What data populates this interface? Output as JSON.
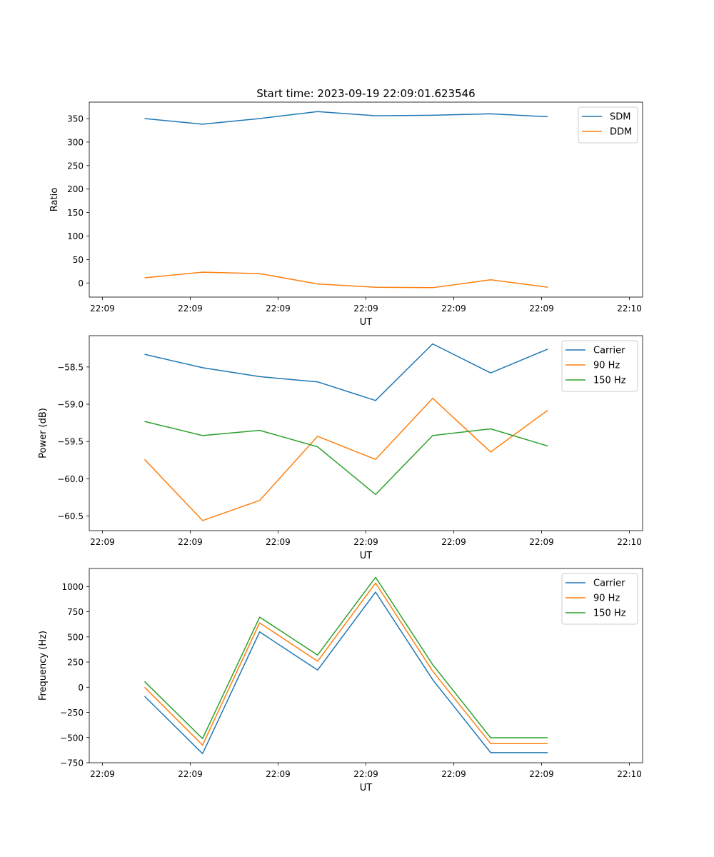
{
  "figure_title": "Start time: 2023-09-19 22:09:01.623546",
  "chart_data": [
    {
      "type": "line",
      "title": "Start time: 2023-09-19 22:09:01.623546",
      "xlabel": "UT",
      "ylabel": "Ratio",
      "x_ticks": [
        0,
        1,
        2,
        3,
        4,
        5,
        6
      ],
      "x_tick_labels": [
        "22:09",
        "22:09",
        "22:09",
        "22:09",
        "22:09",
        "22:09",
        "22:10"
      ],
      "xlim": [
        -0.15,
        6.15
      ],
      "ylim": [
        -30,
        385
      ],
      "y_ticks": [
        0,
        50,
        100,
        150,
        200,
        250,
        300,
        350
      ],
      "y_tick_labels": [
        "0",
        "50",
        "100",
        "150",
        "200",
        "250",
        "300",
        "350"
      ],
      "x": [
        0.48,
        1.14,
        1.79,
        2.45,
        3.11,
        3.76,
        4.42,
        5.07
      ],
      "legend_position": "top-right",
      "series": [
        {
          "name": "SDM",
          "color": "#1f77b4",
          "values": [
            350,
            338,
            350,
            365,
            356,
            357,
            360,
            354
          ]
        },
        {
          "name": "DDM",
          "color": "#ff7f0e",
          "values": [
            11,
            23,
            20,
            -2,
            -9,
            -10,
            7,
            -9
          ]
        }
      ]
    },
    {
      "type": "line",
      "title": "",
      "xlabel": "UT",
      "ylabel": "Power (dB)",
      "x_ticks": [
        0,
        1,
        2,
        3,
        4,
        5,
        6
      ],
      "x_tick_labels": [
        "22:09",
        "22:09",
        "22:09",
        "22:09",
        "22:09",
        "22:09",
        "22:10"
      ],
      "xlim": [
        -0.15,
        6.15
      ],
      "ylim": [
        -60.695,
        -58.08
      ],
      "y_ticks": [
        -58.5,
        -59.0,
        -59.5,
        -60.0,
        -60.5
      ],
      "y_tick_labels": [
        "−58.5",
        "−59.0",
        "−59.5",
        "−60.0",
        "−60.5"
      ],
      "x": [
        0.48,
        1.14,
        1.79,
        2.45,
        3.11,
        3.76,
        4.42,
        5.07
      ],
      "legend_position": "top-right",
      "series": [
        {
          "name": "Carrier",
          "color": "#1f77b4",
          "values": [
            -58.33,
            -58.51,
            -58.63,
            -58.7,
            -58.95,
            -58.19,
            -58.58,
            -58.26
          ]
        },
        {
          "name": "90 Hz",
          "color": "#ff7f0e",
          "values": [
            -59.74,
            -60.56,
            -60.29,
            -59.43,
            -59.74,
            -58.92,
            -59.64,
            -59.08
          ]
        },
        {
          "name": "150 Hz",
          "color": "#2ca02c",
          "values": [
            -59.23,
            -59.42,
            -59.35,
            -59.57,
            -60.21,
            -59.42,
            -59.33,
            -59.56
          ]
        }
      ]
    },
    {
      "type": "line",
      "title": "",
      "xlabel": "UT",
      "ylabel": "Frequency (Hz)",
      "x_ticks": [
        0,
        1,
        2,
        3,
        4,
        5,
        6
      ],
      "x_tick_labels": [
        "22:09",
        "22:09",
        "22:09",
        "22:09",
        "22:09",
        "22:09",
        "22:10"
      ],
      "xlim": [
        -0.15,
        6.15
      ],
      "ylim": [
        -750,
        1180
      ],
      "y_ticks": [
        1000,
        750,
        500,
        250,
        0,
        -250,
        -500,
        -750
      ],
      "y_tick_labels": [
        "1000",
        "750",
        "500",
        "250",
        "0",
        "−250",
        "−500",
        "−750"
      ],
      "x": [
        0.48,
        1.14,
        1.79,
        2.45,
        3.11,
        3.76,
        4.42,
        5.07
      ],
      "legend_position": "top-right",
      "series": [
        {
          "name": "Carrier",
          "color": "#1f77b4",
          "values": [
            -90,
            -660,
            550,
            170,
            945,
            75,
            -650,
            -650
          ]
        },
        {
          "name": "90 Hz",
          "color": "#ff7f0e",
          "values": [
            0,
            -575,
            640,
            258,
            1035,
            160,
            -560,
            -560
          ]
        },
        {
          "name": "150 Hz",
          "color": "#2ca02c",
          "values": [
            57,
            -510,
            697,
            320,
            1092,
            225,
            -502,
            -502
          ]
        }
      ]
    }
  ]
}
